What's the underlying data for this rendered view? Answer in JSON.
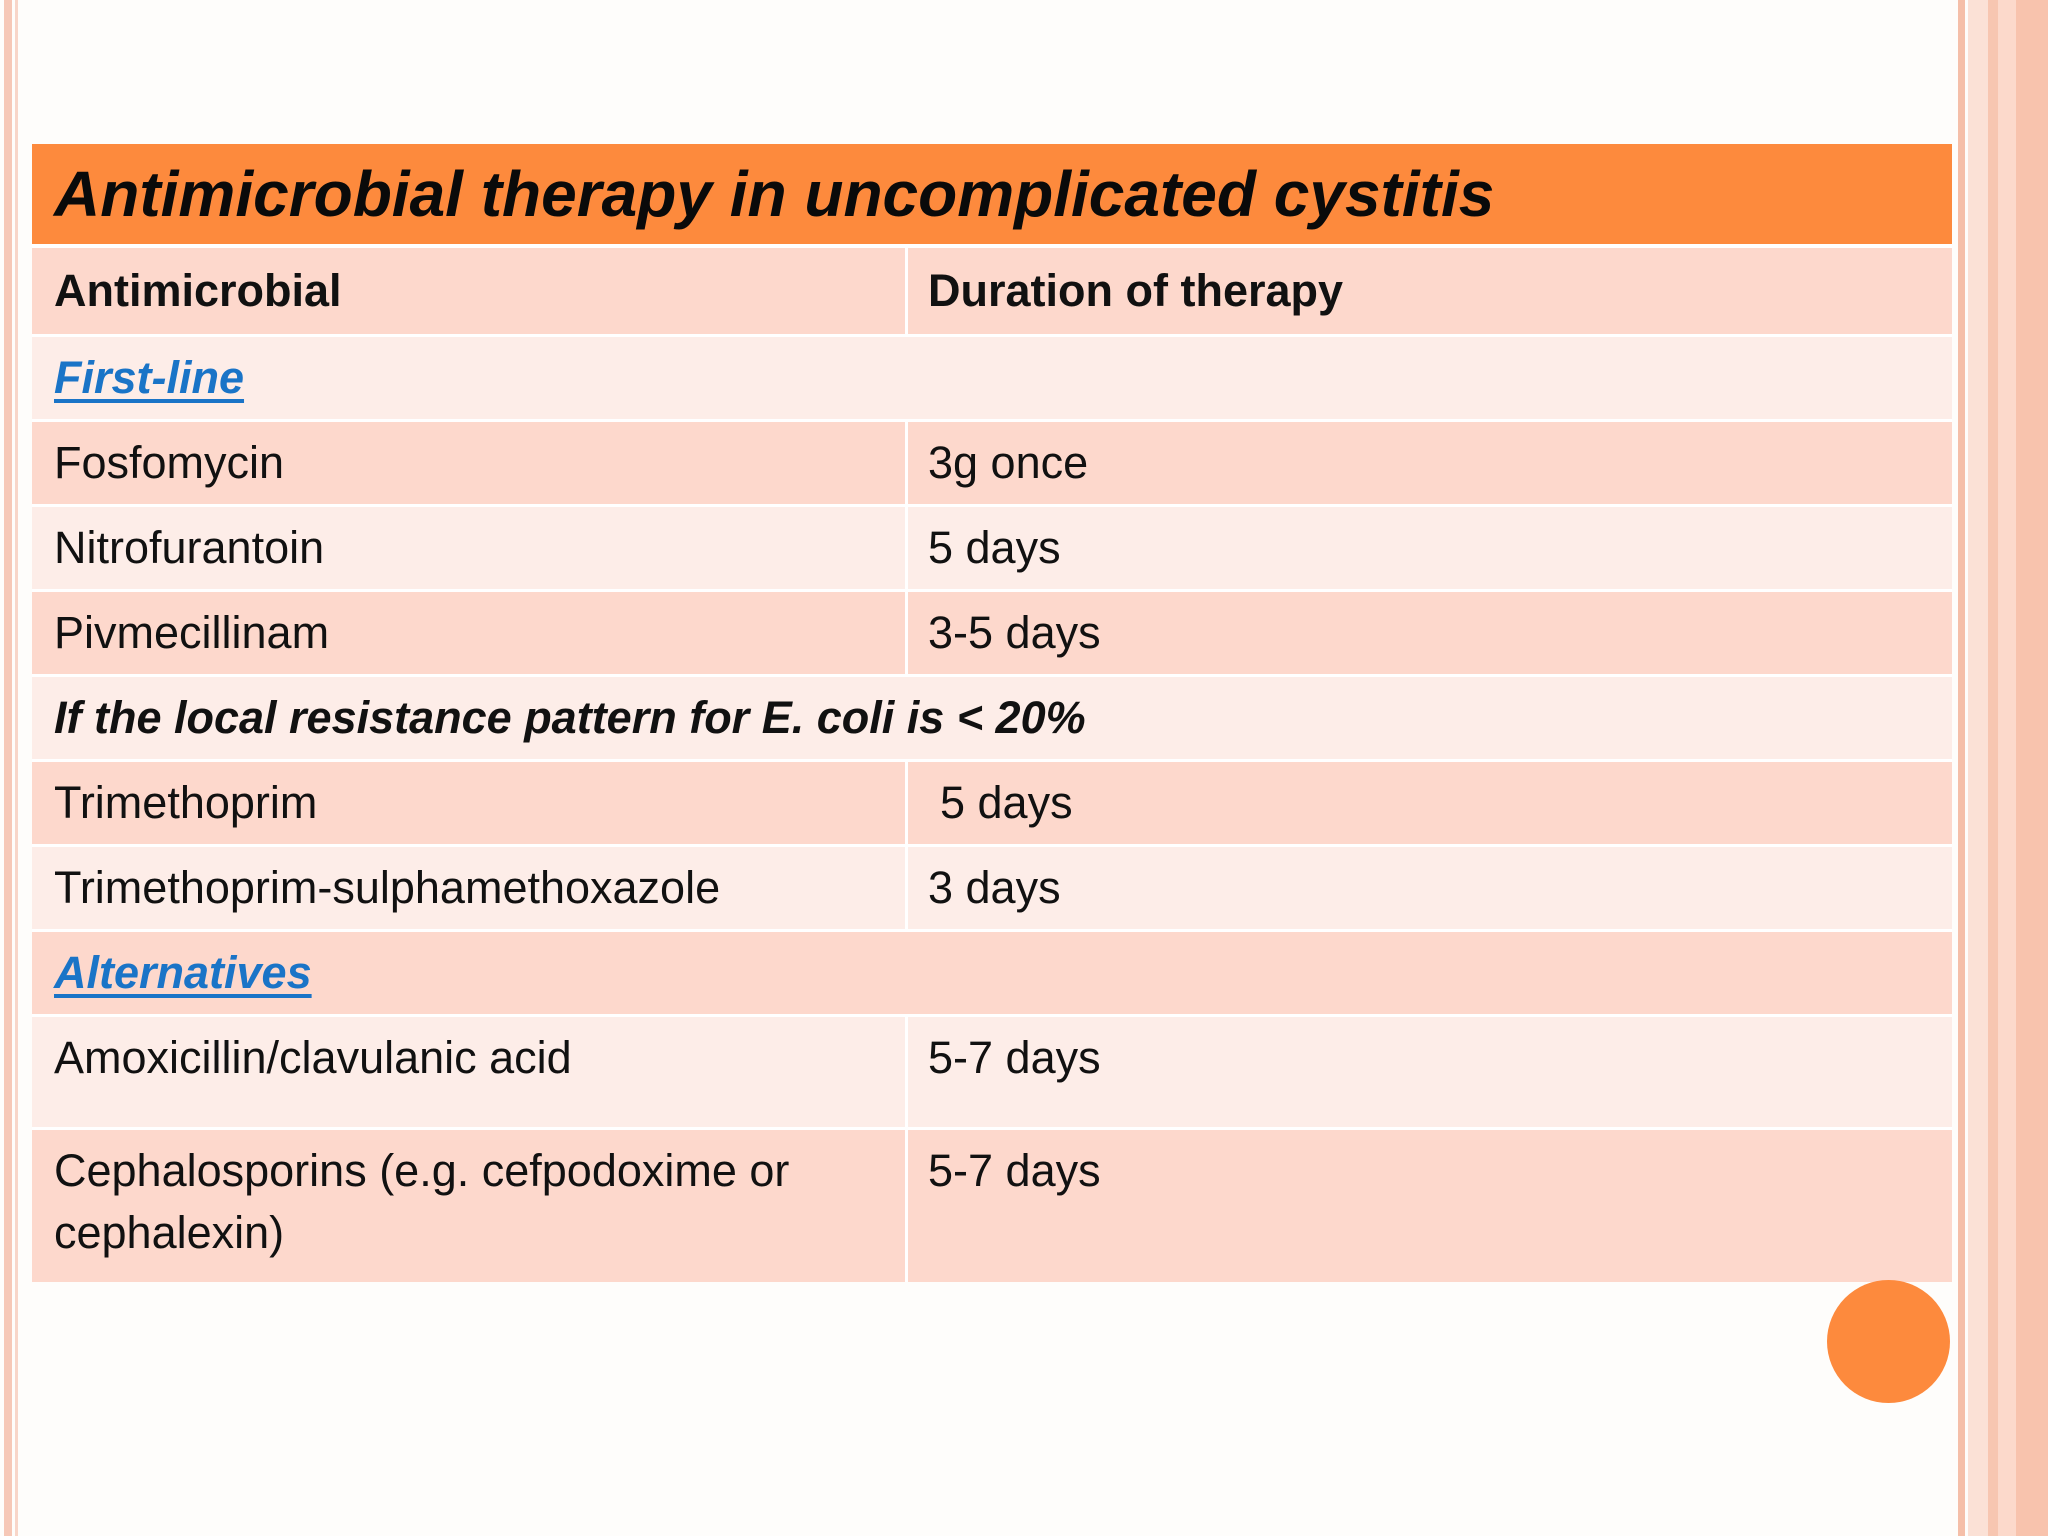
{
  "table": {
    "title": "Antimicrobial therapy in uncomplicated cystitis",
    "headers": {
      "antimicrobial": "Antimicrobial",
      "duration": "Duration of therapy"
    },
    "first_line": {
      "label": "First-line",
      "rows": [
        {
          "drug": "Fosfomycin",
          "duration": "3g once"
        },
        {
          "drug": "Nitrofurantoin",
          "duration": "5 days"
        },
        {
          "drug": "Pivmecillinam",
          "duration": "3-5 days"
        }
      ]
    },
    "conditional": {
      "label": "If the local resistance pattern for E. coli is < 20%",
      "rows": [
        {
          "drug": "Trimethoprim",
          "duration": "5 days"
        },
        {
          "drug": "Trimethoprim-sulphamethoxazole",
          "duration": "3 days"
        }
      ]
    },
    "alternatives": {
      "label": "Alternatives",
      "rows": [
        {
          "drug": "Amoxicillin/clavulanic acid",
          "duration": "5-7 days"
        },
        {
          "drug": "Cephalosporins (e.g. cefpodoxime or cephalexin)",
          "duration": "5-7 days"
        }
      ]
    }
  },
  "colors": {
    "title_bg": "#fd8a3d",
    "row_dark": "#fdd8cc",
    "row_light": "#fdede8",
    "link": "#1a74c7",
    "accent_dot": "#fd8a3d"
  }
}
